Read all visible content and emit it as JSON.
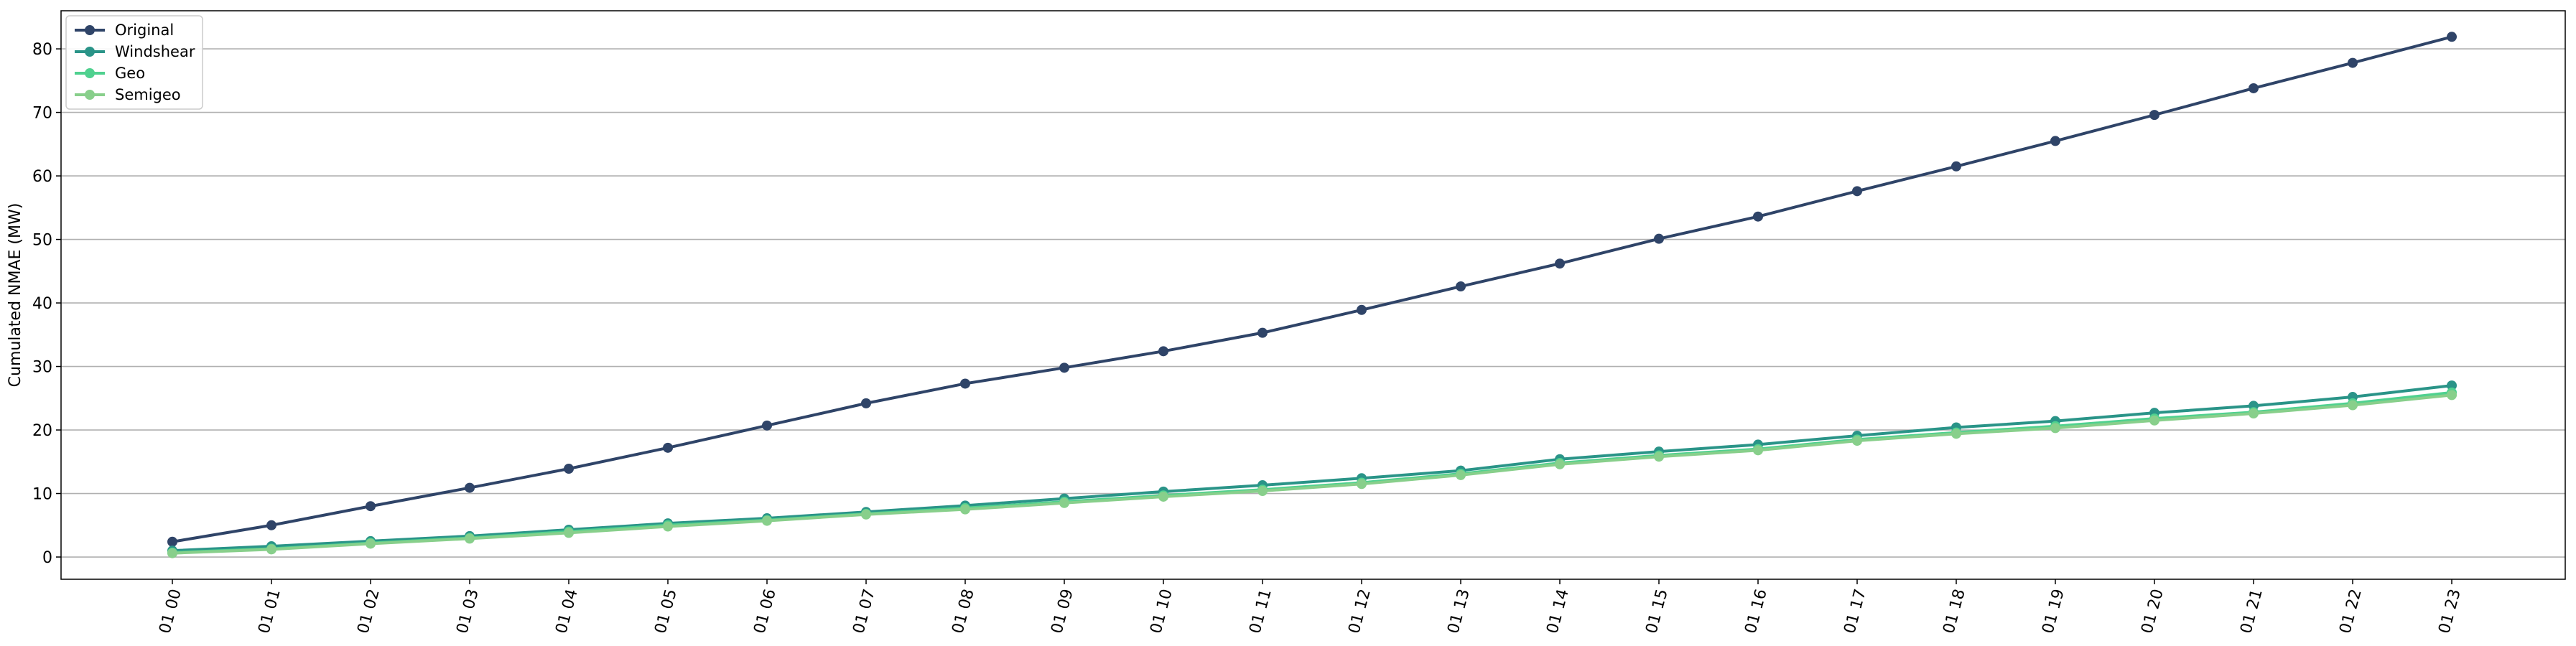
{
  "chart_data": {
    "type": "line",
    "title": "",
    "xlabel": "",
    "ylabel": "Cumulated NMAE (MW)",
    "ylim": [
      -3.5,
      86
    ],
    "yticks": [
      0,
      10,
      20,
      30,
      40,
      50,
      60,
      70,
      80
    ],
    "grid": "horizontal",
    "legend_position": "upper-left",
    "categories": [
      "01 00",
      "01 01",
      "01 02",
      "01 03",
      "01 04",
      "01 05",
      "01 06",
      "01 07",
      "01 08",
      "01 09",
      "01 10",
      "01 11",
      "01 12",
      "01 13",
      "01 14",
      "01 15",
      "01 16",
      "01 17",
      "01 18",
      "01 19",
      "01 20",
      "01 21",
      "01 22",
      "01 23"
    ],
    "series": [
      {
        "name": "Original",
        "color": "#2f4468",
        "values": [
          2.4,
          5.0,
          8.0,
          10.9,
          13.9,
          17.2,
          20.7,
          24.2,
          27.3,
          29.8,
          32.4,
          35.3,
          38.9,
          42.6,
          46.2,
          50.1,
          53.6,
          57.6,
          61.5,
          65.5,
          69.6,
          73.8,
          77.8,
          81.9
        ]
      },
      {
        "name": "Windshear",
        "color": "#2a9488",
        "values": [
          1.0,
          1.7,
          2.5,
          3.3,
          4.3,
          5.3,
          6.1,
          7.1,
          8.1,
          9.2,
          10.3,
          11.3,
          12.4,
          13.6,
          15.4,
          16.6,
          17.7,
          19.1,
          20.4,
          21.4,
          22.7,
          23.8,
          25.2,
          27.0
        ]
      },
      {
        "name": "Geo",
        "color": "#4fd18f",
        "values": [
          0.7,
          1.3,
          2.2,
          3.0,
          4.0,
          5.0,
          5.8,
          6.8,
          7.7,
          8.7,
          9.7,
          10.6,
          11.7,
          13.1,
          14.8,
          16.0,
          17.0,
          18.5,
          19.6,
          20.6,
          21.8,
          22.8,
          24.2,
          25.9
        ]
      },
      {
        "name": "Semigeo",
        "color": "#88cf8b",
        "values": [
          0.6,
          1.2,
          2.1,
          2.9,
          3.8,
          4.8,
          5.7,
          6.7,
          7.5,
          8.5,
          9.5,
          10.4,
          11.5,
          12.9,
          14.6,
          15.8,
          16.8,
          18.3,
          19.4,
          20.3,
          21.5,
          22.6,
          23.9,
          25.5
        ]
      }
    ]
  }
}
